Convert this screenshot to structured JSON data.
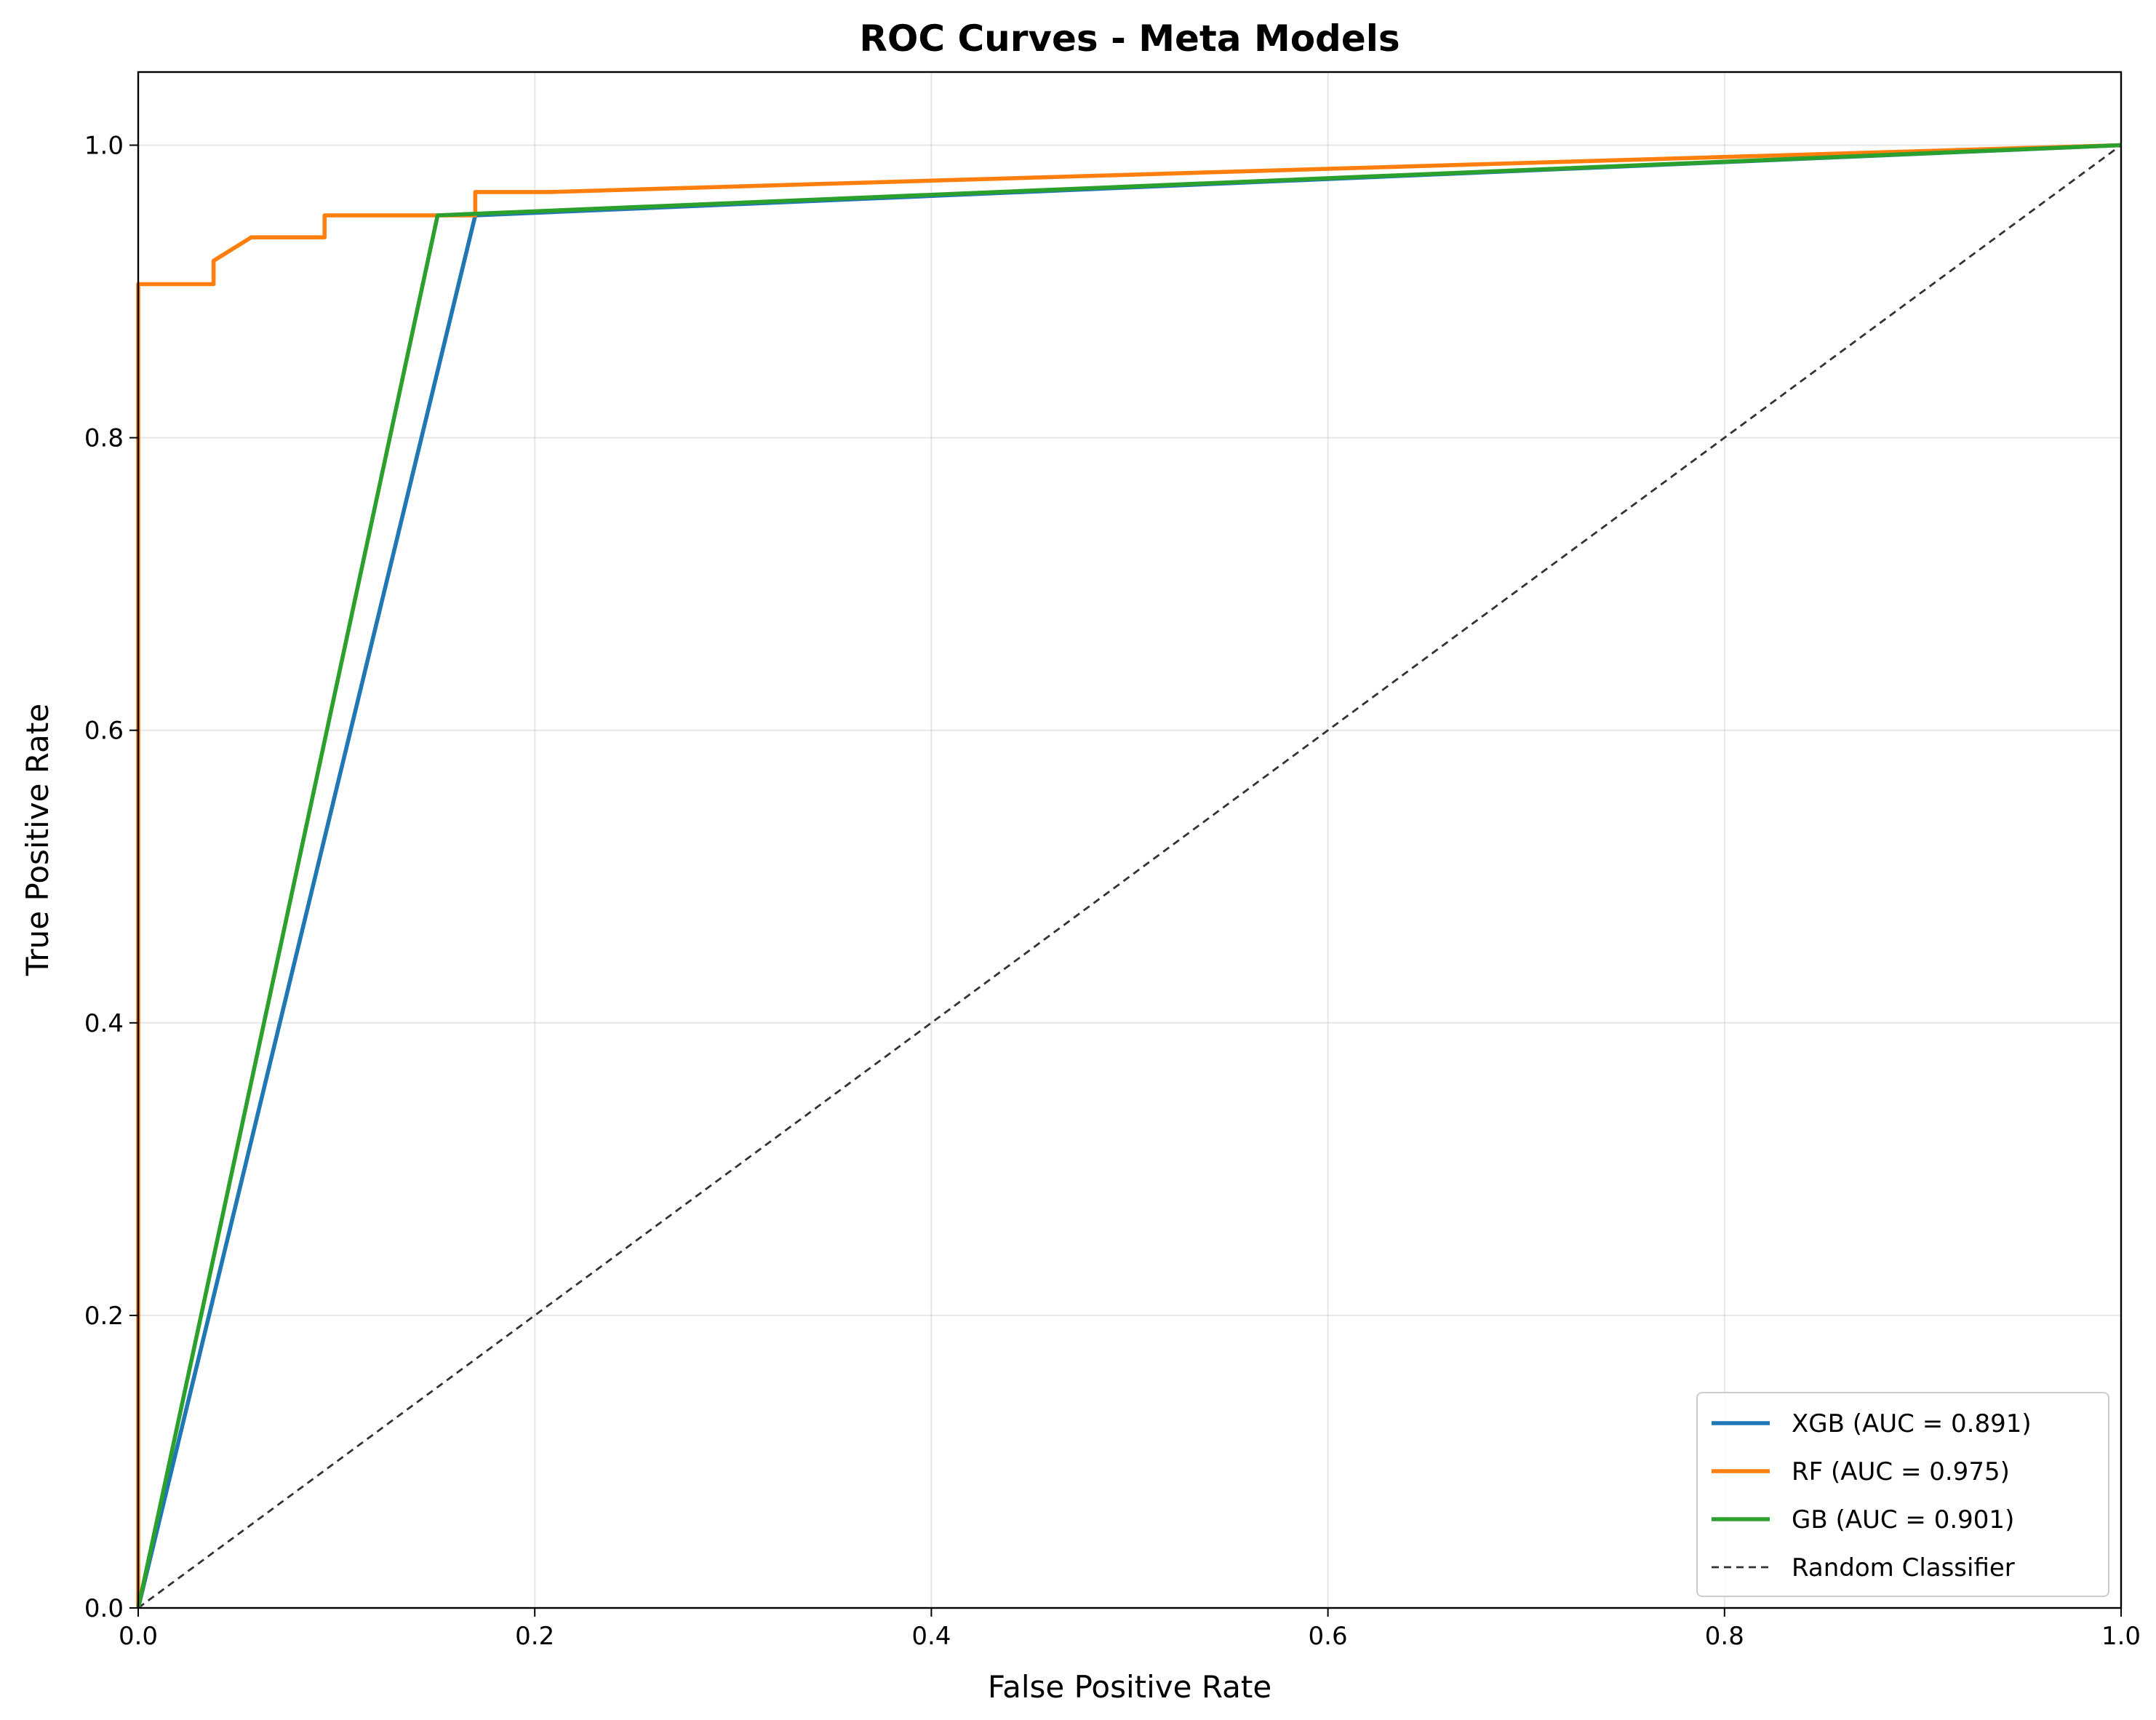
{
  "chart_data": {
    "type": "line",
    "title": "ROC Curves - Meta Models",
    "xlabel": "False Positive Rate",
    "ylabel": "True Positive Rate",
    "xlim": [
      0.0,
      1.0
    ],
    "ylim": [
      0.0,
      1.05
    ],
    "xticks": [
      "0.0",
      "0.2",
      "0.4",
      "0.6",
      "0.8",
      "1.0"
    ],
    "yticks": [
      "0.0",
      "0.2",
      "0.4",
      "0.6",
      "0.8",
      "1.0"
    ],
    "grid": true,
    "legend_position": "lower right",
    "series": [
      {
        "name": "XGB (AUC = 0.891)",
        "color": "#1f77b4",
        "style": "solid",
        "x": [
          0.0,
          0.17,
          1.0
        ],
        "y": [
          0.0,
          0.952,
          1.0
        ]
      },
      {
        "name": "RF (AUC = 0.975)",
        "color": "#ff7f0e",
        "style": "solid",
        "x": [
          0.0,
          0.0,
          0.038,
          0.038,
          0.057,
          0.094,
          0.094,
          0.17,
          0.17,
          0.208,
          1.0
        ],
        "y": [
          0.0,
          0.905,
          0.905,
          0.921,
          0.937,
          0.937,
          0.952,
          0.952,
          0.968,
          0.968,
          1.0
        ]
      },
      {
        "name": "GB (AUC = 0.901)",
        "color": "#2ca02c",
        "style": "solid",
        "x": [
          0.0,
          0.151,
          1.0
        ],
        "y": [
          0.0,
          0.952,
          1.0
        ]
      },
      {
        "name": "Random Classifier",
        "color": "#333333",
        "style": "dashed",
        "x": [
          0.0,
          1.0
        ],
        "y": [
          0.0,
          1.0
        ]
      }
    ]
  }
}
